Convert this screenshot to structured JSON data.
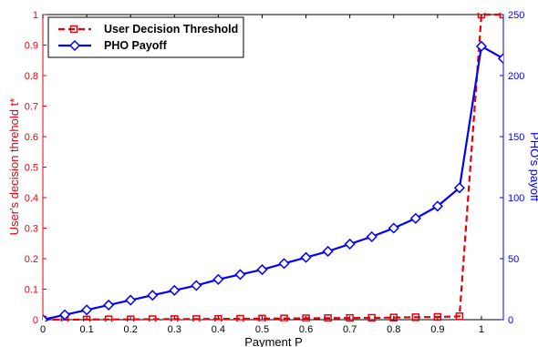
{
  "chart_data": {
    "type": "line",
    "xlabel": "Payment P",
    "ylabel_left": "User's decision threhold t*",
    "ylabel_right": "PHO's payoff",
    "xlim": [
      0,
      1.05
    ],
    "ylim_left": [
      0,
      1
    ],
    "ylim_right": [
      0,
      250
    ],
    "x_ticks": [
      "0",
      "0.1",
      "0.2",
      "0.3",
      "0.4",
      "0.5",
      "0.6",
      "0.7",
      "0.8",
      "0.9",
      "1"
    ],
    "y_left_ticks": [
      "0",
      "0.1",
      "0.2",
      "0.3",
      "0.4",
      "0.5",
      "0.6",
      "0.7",
      "0.8",
      "0.9",
      "1"
    ],
    "y_right_ticks": [
      "0",
      "50",
      "100",
      "150",
      "200",
      "250"
    ],
    "legend_position": "top-left",
    "grid": false,
    "series": [
      {
        "name": "User Decision Threshold",
        "axis": "left",
        "color": "#e8000b",
        "line_style": "dashed",
        "marker": "square",
        "x": [
          0,
          0.05,
          0.1,
          0.15,
          0.2,
          0.25,
          0.3,
          0.35,
          0.4,
          0.45,
          0.5,
          0.55,
          0.6,
          0.65,
          0.7,
          0.75,
          0.8,
          0.85,
          0.9,
          0.95,
          1.0,
          1.05
        ],
        "y": [
          0,
          0,
          0.0005,
          0.001,
          0.001,
          0.0015,
          0.002,
          0.002,
          0.0025,
          0.003,
          0.0035,
          0.004,
          0.0045,
          0.005,
          0.0055,
          0.006,
          0.007,
          0.008,
          0.009,
          0.011,
          1.0,
          1.0
        ]
      },
      {
        "name": "PHO Payoff",
        "axis": "right",
        "color": "#0000ff",
        "line_style": "solid",
        "marker": "diamond",
        "x": [
          0,
          0.05,
          0.1,
          0.15,
          0.2,
          0.25,
          0.3,
          0.35,
          0.4,
          0.45,
          0.5,
          0.55,
          0.6,
          0.65,
          0.7,
          0.75,
          0.8,
          0.85,
          0.9,
          0.95,
          1.0,
          1.05
        ],
        "y": [
          0,
          4,
          8,
          12,
          16,
          20,
          24,
          28,
          33,
          37,
          41,
          46,
          51,
          56,
          62,
          68,
          75,
          83,
          93,
          108,
          224,
          214
        ]
      }
    ]
  }
}
